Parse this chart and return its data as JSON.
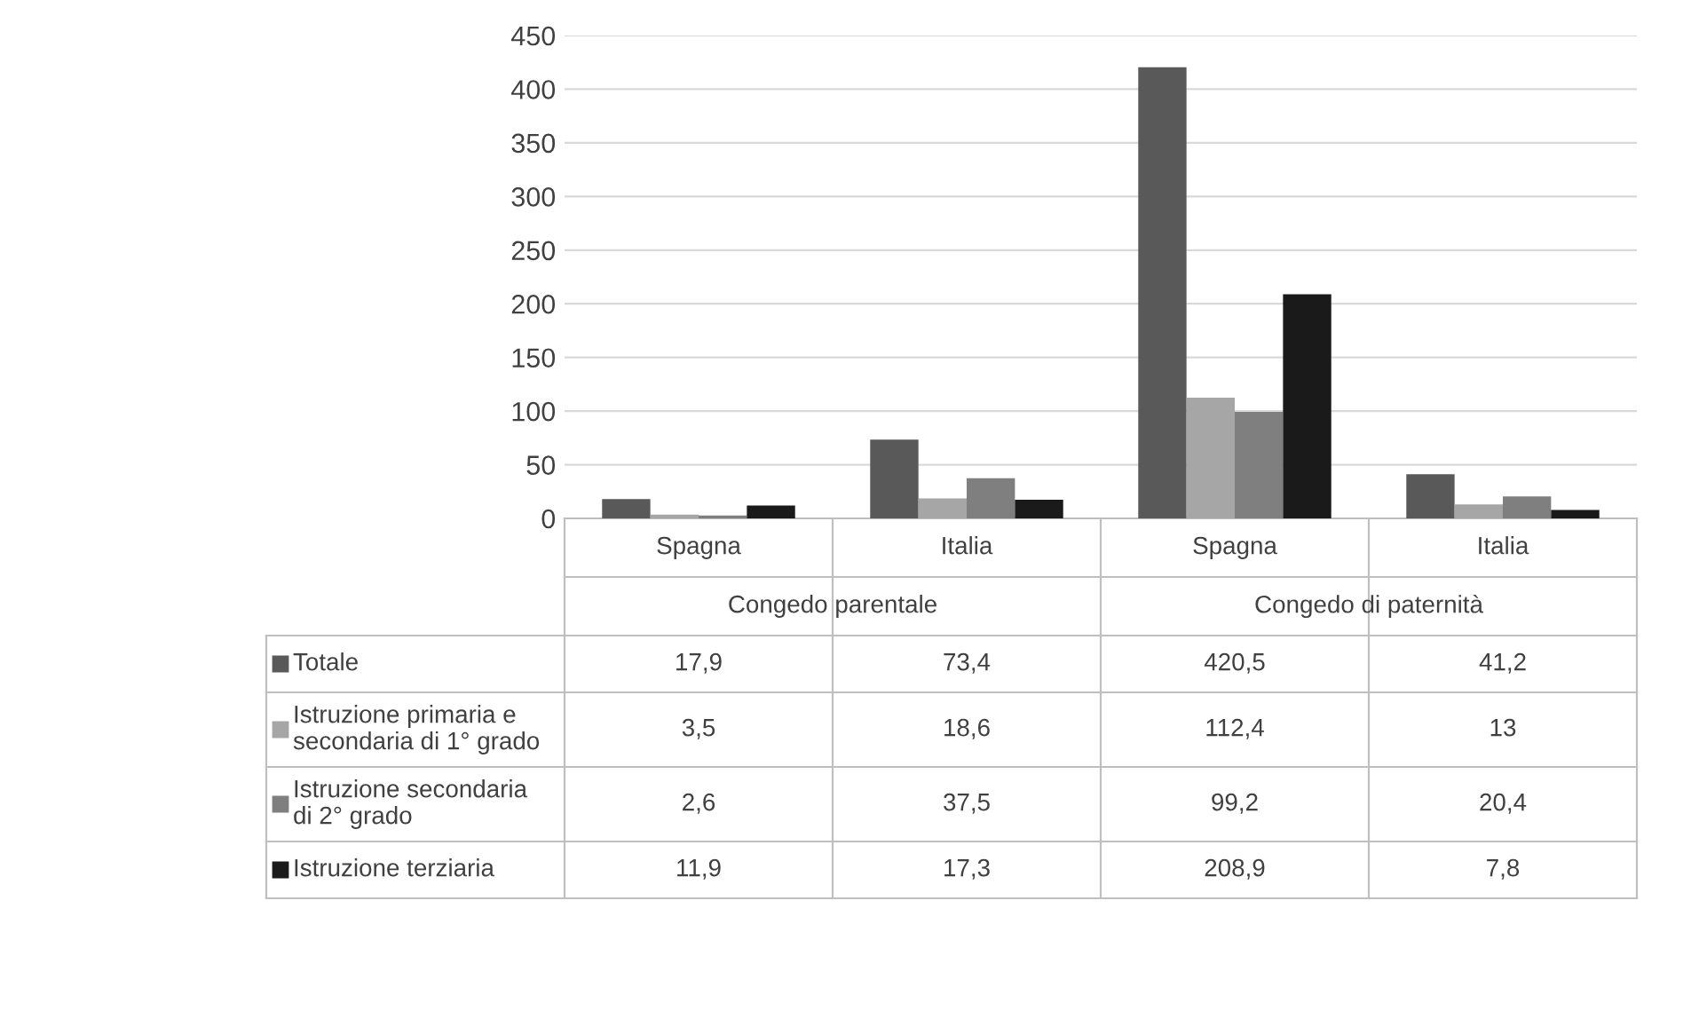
{
  "chart_data": {
    "type": "bar",
    "categories": [
      "Spagna",
      "Italia",
      "Spagna",
      "Italia"
    ],
    "annotations": [
      "Congedo parentale",
      "Congedo di paternità"
    ],
    "series": [
      {
        "name": "Totale",
        "color": "#595959",
        "values": [
          17.9,
          73.4,
          420.5,
          41.2
        ],
        "value_labels": [
          "17,9",
          "73,4",
          "420,5",
          "41,2"
        ]
      },
      {
        "name": "Istruzione primaria e secondaria di 1° grado",
        "color": "#a6a6a6",
        "values": [
          3.5,
          18.6,
          112.4,
          13
        ],
        "value_labels": [
          "3,5",
          "18,6",
          "112,4",
          "13"
        ]
      },
      {
        "name": "Istruzione secondaria di 2° grado",
        "color": "#7f7f7f",
        "values": [
          2.6,
          37.5,
          99.2,
          20.4
        ],
        "value_labels": [
          "2,6",
          "37,5",
          "99,2",
          "20,4"
        ]
      },
      {
        "name": "Istruzione terziaria",
        "color": "#1a1a1a",
        "values": [
          11.9,
          17.3,
          208.9,
          7.8
        ],
        "value_labels": [
          "11,9",
          "17,3",
          "208,9",
          "7,8"
        ]
      }
    ],
    "ylim": [
      0,
      450
    ],
    "yticks": [
      0,
      50,
      100,
      150,
      200,
      250,
      300,
      350,
      400,
      450
    ],
    "grid": "y",
    "legend": "left",
    "tick_labels": "y"
  }
}
